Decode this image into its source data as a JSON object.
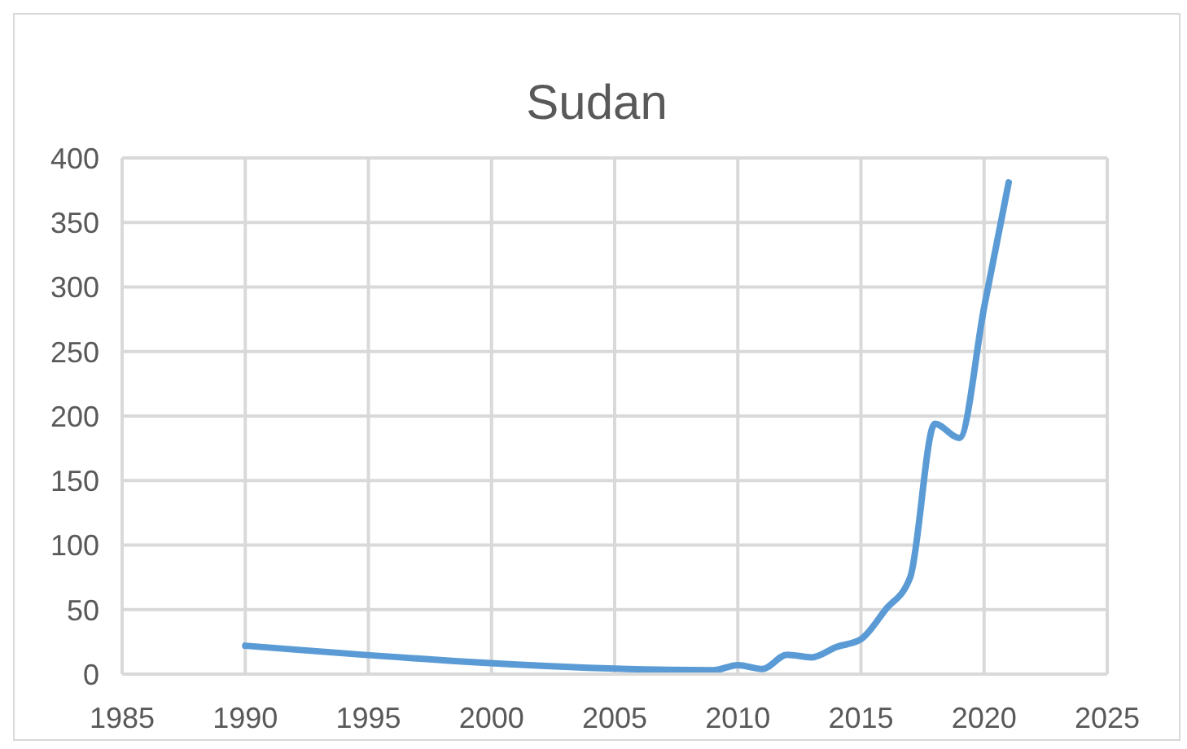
{
  "chart_data": {
    "type": "line",
    "title": "Sudan",
    "x": [
      1990,
      2009,
      2010,
      2011,
      2012,
      2013,
      2014,
      2015,
      2016,
      2017,
      2018,
      2019,
      2020,
      2021
    ],
    "series": [
      {
        "color": "#5b9bd5",
        "values": [
          22,
          3,
          7,
          4,
          15,
          13,
          21,
          27,
          50,
          75,
          194,
          183,
          284,
          381
        ]
      }
    ],
    "xlim": [
      1985,
      2025
    ],
    "xticks": [
      1985,
      1990,
      1995,
      2000,
      2005,
      2010,
      2015,
      2020,
      2025
    ],
    "ylim": [
      0,
      400
    ],
    "yticks": [
      0,
      50,
      100,
      150,
      200,
      250,
      300,
      350,
      400
    ],
    "grid": true,
    "legend": false,
    "marker": "none",
    "line_style": "solid"
  }
}
